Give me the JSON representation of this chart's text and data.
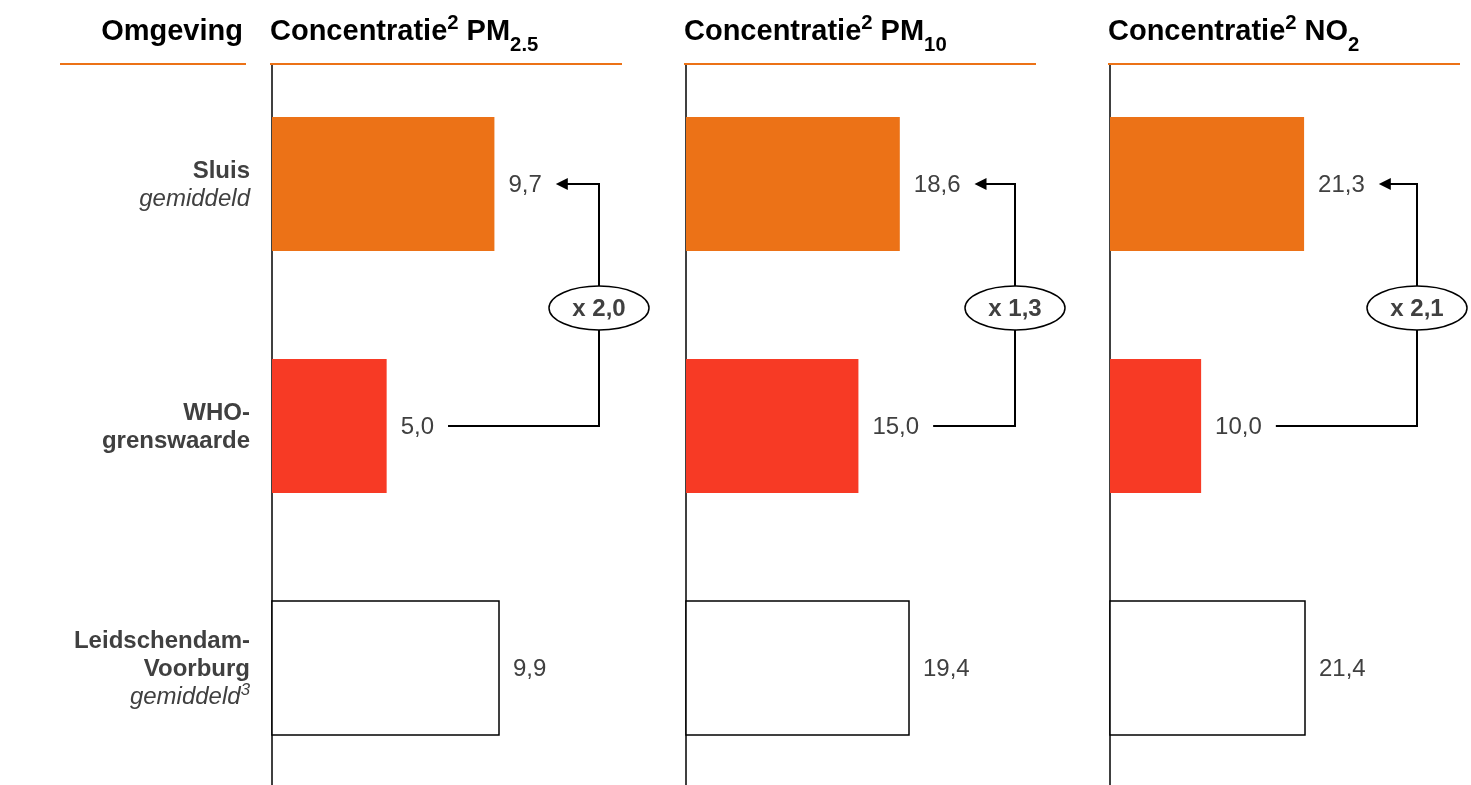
{
  "chart_data": [
    {
      "type": "bar",
      "orientation": "horizontal",
      "title": "Concentratie$^{2}$ PM$_{2.5}$",
      "ylabel": "Omgeving",
      "categories": [
        "Sluis\ngemiddeld",
        "WHO-\ngrenswaarde",
        "Leidschendam-\nVoorburg\ngemiddeld$^{3}$"
      ],
      "values": [
        9.7,
        5.0,
        9.9
      ],
      "value_labels": [
        "9,7",
        "5,0",
        "9,9"
      ],
      "colors": [
        "#ec7217",
        "#f73a25",
        "#ffffff"
      ],
      "annotations": [
        "x 2,0"
      ],
      "tick_labels": "y"
    },
    {
      "type": "bar",
      "orientation": "horizontal",
      "title": "Concentratie$^{2}$  PM$_{10}$",
      "categories": [
        null,
        null,
        null
      ],
      "values": [
        18.6,
        15.0,
        19.4
      ],
      "value_labels": [
        "18,6",
        "15,0",
        "19,4"
      ],
      "colors": [
        "#ec7217",
        "#f73a25",
        "#ffffff"
      ],
      "annotations": [
        "x 1,3"
      ]
    },
    {
      "type": "bar",
      "orientation": "horizontal",
      "title": "Concentratie$^{2}$  NO$_{2}$",
      "categories": [
        null,
        null,
        null
      ],
      "values": [
        21.3,
        10.0,
        21.4
      ],
      "value_labels": [
        "21,3",
        "10,0",
        "21,4"
      ],
      "colors": [
        "#ec7217",
        "#f73a25",
        "#ffffff"
      ],
      "annotations": [
        "x 2,1"
      ]
    }
  ]
}
